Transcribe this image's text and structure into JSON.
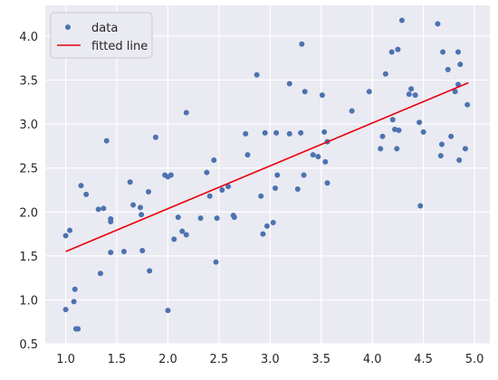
{
  "chart_data": {
    "type": "scatter",
    "title": "",
    "xlabel": "",
    "ylabel": "",
    "xlim": [
      0.8,
      5.15
    ],
    "ylim": [
      0.5,
      4.35
    ],
    "x_ticks": [
      1.0,
      1.5,
      2.0,
      2.5,
      3.0,
      3.5,
      4.0,
      4.5,
      5.0
    ],
    "x_tick_labels": [
      "1.0",
      "1.5",
      "2.0",
      "2.5",
      "3.0",
      "3.5",
      "4.0",
      "4.5",
      "5.0"
    ],
    "y_ticks": [
      0.5,
      1.0,
      1.5,
      2.0,
      2.5,
      3.0,
      3.5,
      4.0
    ],
    "y_tick_labels": [
      "0.5",
      "1.0",
      "1.5",
      "2.0",
      "2.5",
      "3.0",
      "3.5",
      "4.0"
    ],
    "grid": true,
    "background_color": "#eaeaf2",
    "legend": {
      "placement": "top-left",
      "entries": [
        {
          "label": "data",
          "marker": "point",
          "color": "#4c72b0"
        },
        {
          "label": "fitted line",
          "marker": "line",
          "color": "#e8000b"
        }
      ]
    },
    "series": [
      {
        "name": "data",
        "kind": "scatter",
        "color": "#4c72b0",
        "points": [
          [
            1.0,
            0.89
          ],
          [
            1.0,
            1.73
          ],
          [
            1.04,
            1.79
          ],
          [
            1.08,
            0.98
          ],
          [
            1.09,
            1.12
          ],
          [
            1.1,
            0.67
          ],
          [
            1.12,
            0.67
          ],
          [
            1.15,
            2.3
          ],
          [
            1.2,
            2.2
          ],
          [
            1.32,
            2.03
          ],
          [
            1.34,
            1.3
          ],
          [
            1.37,
            2.04
          ],
          [
            1.4,
            2.81
          ],
          [
            1.44,
            1.92
          ],
          [
            1.44,
            1.89
          ],
          [
            1.44,
            1.54
          ],
          [
            1.57,
            1.55
          ],
          [
            1.63,
            2.34
          ],
          [
            1.66,
            2.08
          ],
          [
            1.73,
            2.05
          ],
          [
            1.74,
            1.97
          ],
          [
            1.75,
            1.56
          ],
          [
            1.81,
            2.23
          ],
          [
            1.82,
            1.33
          ],
          [
            1.88,
            2.85
          ],
          [
            1.97,
            2.42
          ],
          [
            2.0,
            0.88
          ],
          [
            2.0,
            2.4
          ],
          [
            2.03,
            2.42
          ],
          [
            2.06,
            1.69
          ],
          [
            2.1,
            1.94
          ],
          [
            2.14,
            1.78
          ],
          [
            2.18,
            3.13
          ],
          [
            2.18,
            1.74
          ],
          [
            2.32,
            1.93
          ],
          [
            2.38,
            2.45
          ],
          [
            2.41,
            2.18
          ],
          [
            2.45,
            2.59
          ],
          [
            2.47,
            1.43
          ],
          [
            2.48,
            1.93
          ],
          [
            2.53,
            2.25
          ],
          [
            2.59,
            2.29
          ],
          [
            2.64,
            1.96
          ],
          [
            2.65,
            1.94
          ],
          [
            2.76,
            2.89
          ],
          [
            2.78,
            2.65
          ],
          [
            2.87,
            3.56
          ],
          [
            2.91,
            2.18
          ],
          [
            2.93,
            1.75
          ],
          [
            2.95,
            2.9
          ],
          [
            2.97,
            1.84
          ],
          [
            3.03,
            1.88
          ],
          [
            3.05,
            2.27
          ],
          [
            3.06,
            2.9
          ],
          [
            3.07,
            2.42
          ],
          [
            3.19,
            3.46
          ],
          [
            3.19,
            2.89
          ],
          [
            3.27,
            2.26
          ],
          [
            3.3,
            2.9
          ],
          [
            3.31,
            3.91
          ],
          [
            3.33,
            2.42
          ],
          [
            3.34,
            3.37
          ],
          [
            3.42,
            2.65
          ],
          [
            3.47,
            2.63
          ],
          [
            3.51,
            3.33
          ],
          [
            3.53,
            2.91
          ],
          [
            3.54,
            2.57
          ],
          [
            3.56,
            2.8
          ],
          [
            3.56,
            2.33
          ],
          [
            3.8,
            3.15
          ],
          [
            3.97,
            3.37
          ],
          [
            4.08,
            2.72
          ],
          [
            4.1,
            2.86
          ],
          [
            4.13,
            3.57
          ],
          [
            4.19,
            3.82
          ],
          [
            4.2,
            3.05
          ],
          [
            4.22,
            2.94
          ],
          [
            4.24,
            2.72
          ],
          [
            4.25,
            3.85
          ],
          [
            4.26,
            2.93
          ],
          [
            4.29,
            4.18
          ],
          [
            4.36,
            3.34
          ],
          [
            4.38,
            3.4
          ],
          [
            4.42,
            3.33
          ],
          [
            4.46,
            3.02
          ],
          [
            4.47,
            2.07
          ],
          [
            4.5,
            2.91
          ],
          [
            4.64,
            4.14
          ],
          [
            4.67,
            2.64
          ],
          [
            4.68,
            2.77
          ],
          [
            4.69,
            3.82
          ],
          [
            4.74,
            3.62
          ],
          [
            4.77,
            2.86
          ],
          [
            4.81,
            3.37
          ],
          [
            4.84,
            3.82
          ],
          [
            4.84,
            3.45
          ],
          [
            4.86,
            3.68
          ],
          [
            4.85,
            2.59
          ],
          [
            4.91,
            2.72
          ],
          [
            4.93,
            3.22
          ]
        ]
      },
      {
        "name": "fitted line",
        "kind": "line",
        "color": "#e8000b",
        "points": [
          [
            1.0,
            1.55
          ],
          [
            4.94,
            3.47
          ]
        ]
      }
    ]
  }
}
